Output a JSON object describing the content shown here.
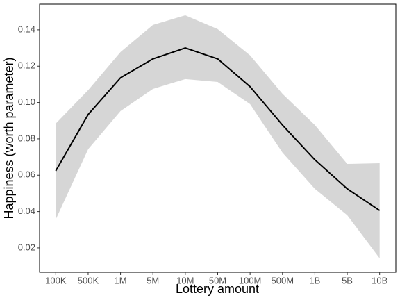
{
  "chart_data": {
    "type": "line",
    "x_label": "Lottery amount",
    "y_label": "Happiness (worth parameter)",
    "categories": [
      "100K",
      "500K",
      "1M",
      "5M",
      "10M",
      "50M",
      "100M",
      "500M",
      "1B",
      "5B",
      "10B"
    ],
    "values": [
      0.0624,
      0.0934,
      0.1136,
      0.124,
      0.13,
      0.124,
      0.1087,
      0.0876,
      0.0685,
      0.0525,
      0.0406
    ],
    "ci_lower": [
      0.0357,
      0.0743,
      0.0953,
      0.1075,
      0.1129,
      0.1113,
      0.0991,
      0.0724,
      0.0525,
      0.038,
      0.0143
    ],
    "ci_upper": [
      0.0884,
      0.1068,
      0.1278,
      0.1427,
      0.148,
      0.1404,
      0.1259,
      0.1048,
      0.0876,
      0.0662,
      0.0666
    ],
    "color": "#000000",
    "band_color": "#d6d6d6",
    "ylim": [
      0.0066,
      0.1541
    ],
    "yticks": [
      0.02,
      0.04,
      0.06,
      0.08,
      {
        "value": 0.1,
        "label": "0.10"
      },
      0.12,
      0.14
    ],
    "grid": false
  }
}
